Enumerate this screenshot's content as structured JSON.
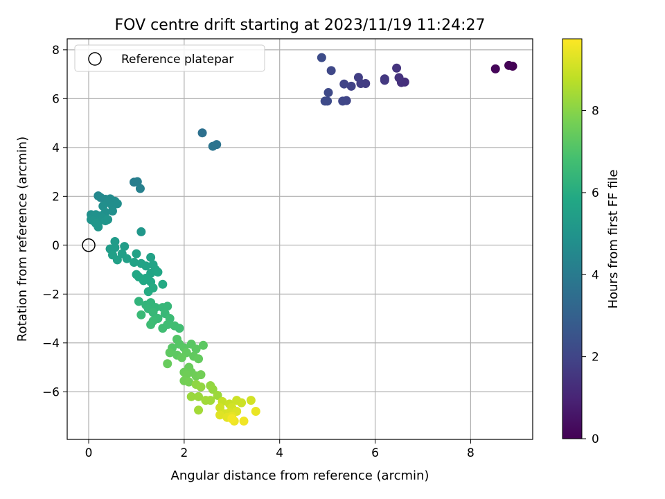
{
  "chart_data": {
    "type": "scatter",
    "title": "FOV centre drift starting at 2023/11/19 11:24:27",
    "xlabel": "Angular distance from reference (arcmin)",
    "ylabel": "Rotation from reference (arcmin)",
    "xlim": [
      -0.45,
      9.3
    ],
    "ylim": [
      -7.95,
      8.45
    ],
    "xticks": [
      0,
      2,
      4,
      6,
      8
    ],
    "yticks": [
      -6,
      -4,
      -2,
      0,
      2,
      4,
      6,
      8
    ],
    "grid": true,
    "legend": {
      "position": "top-left",
      "entries": [
        "Reference platepar"
      ]
    },
    "reference_point": {
      "x": 0,
      "y": 0
    },
    "colorbar": {
      "label": "Hours from first FF file",
      "colormap": "viridis",
      "range": [
        0,
        9.75
      ],
      "ticks": [
        0,
        2,
        4,
        6,
        8
      ]
    },
    "points": [
      {
        "x": 8.88,
        "y": 7.33,
        "c": 0.0
      },
      {
        "x": 8.8,
        "y": 7.36,
        "c": 0.05
      },
      {
        "x": 8.52,
        "y": 7.22,
        "c": 0.15
      },
      {
        "x": 6.62,
        "y": 6.68,
        "c": 1.3
      },
      {
        "x": 6.55,
        "y": 6.66,
        "c": 1.35
      },
      {
        "x": 6.5,
        "y": 6.86,
        "c": 1.4
      },
      {
        "x": 6.45,
        "y": 7.25,
        "c": 1.45
      },
      {
        "x": 6.2,
        "y": 6.81,
        "c": 1.55
      },
      {
        "x": 6.2,
        "y": 6.75,
        "c": 1.6
      },
      {
        "x": 5.8,
        "y": 6.62,
        "c": 1.7
      },
      {
        "x": 5.7,
        "y": 6.62,
        "c": 1.75
      },
      {
        "x": 5.65,
        "y": 6.87,
        "c": 1.8
      },
      {
        "x": 5.5,
        "y": 6.51,
        "c": 1.9
      },
      {
        "x": 5.35,
        "y": 6.6,
        "c": 1.95
      },
      {
        "x": 5.4,
        "y": 5.92,
        "c": 2.0
      },
      {
        "x": 5.32,
        "y": 5.9,
        "c": 2.05
      },
      {
        "x": 5.08,
        "y": 7.15,
        "c": 2.1
      },
      {
        "x": 5.02,
        "y": 6.25,
        "c": 2.15
      },
      {
        "x": 4.95,
        "y": 5.9,
        "c": 2.2
      },
      {
        "x": 5.0,
        "y": 5.9,
        "c": 2.22
      },
      {
        "x": 4.88,
        "y": 7.68,
        "c": 2.25
      },
      {
        "x": 2.38,
        "y": 4.6,
        "c": 3.6
      },
      {
        "x": 2.68,
        "y": 4.12,
        "c": 3.7
      },
      {
        "x": 2.6,
        "y": 4.05,
        "c": 3.75
      },
      {
        "x": 0.95,
        "y": 2.58,
        "c": 4.1
      },
      {
        "x": 1.02,
        "y": 2.6,
        "c": 4.15
      },
      {
        "x": 1.08,
        "y": 2.32,
        "c": 4.2
      },
      {
        "x": 0.2,
        "y": 2.02,
        "c": 4.5
      },
      {
        "x": 0.25,
        "y": 1.95,
        "c": 4.55
      },
      {
        "x": 0.35,
        "y": 1.88,
        "c": 4.6
      },
      {
        "x": 0.45,
        "y": 1.9,
        "c": 4.65
      },
      {
        "x": 0.55,
        "y": 1.8,
        "c": 4.7
      },
      {
        "x": 0.4,
        "y": 1.75,
        "c": 4.7
      },
      {
        "x": 0.6,
        "y": 1.7,
        "c": 4.75
      },
      {
        "x": 0.5,
        "y": 1.6,
        "c": 4.75
      },
      {
        "x": 0.3,
        "y": 1.6,
        "c": 4.8
      },
      {
        "x": 0.5,
        "y": 1.4,
        "c": 4.8
      },
      {
        "x": 0.35,
        "y": 1.35,
        "c": 4.85
      },
      {
        "x": 0.05,
        "y": 1.25,
        "c": 4.85
      },
      {
        "x": 0.15,
        "y": 1.25,
        "c": 4.9
      },
      {
        "x": 0.25,
        "y": 1.2,
        "c": 4.9
      },
      {
        "x": 0.3,
        "y": 1.1,
        "c": 4.95
      },
      {
        "x": 0.05,
        "y": 1.05,
        "c": 4.95
      },
      {
        "x": 0.1,
        "y": 1.0,
        "c": 5.0
      },
      {
        "x": 0.2,
        "y": 0.95,
        "c": 5.0
      },
      {
        "x": 0.35,
        "y": 1.0,
        "c": 5.05
      },
      {
        "x": 0.4,
        "y": 1.05,
        "c": 5.05
      },
      {
        "x": 0.2,
        "y": 0.75,
        "c": 5.1
      },
      {
        "x": 0.15,
        "y": 0.9,
        "c": 5.1
      },
      {
        "x": 1.1,
        "y": 0.55,
        "c": 5.15
      },
      {
        "x": 0.55,
        "y": 0.15,
        "c": 5.3
      },
      {
        "x": 0.45,
        "y": -0.15,
        "c": 5.35
      },
      {
        "x": 0.55,
        "y": -0.1,
        "c": 5.35
      },
      {
        "x": 0.75,
        "y": -0.05,
        "c": 5.4
      },
      {
        "x": 0.5,
        "y": -0.4,
        "c": 5.45
      },
      {
        "x": 0.7,
        "y": -0.35,
        "c": 5.45
      },
      {
        "x": 0.6,
        "y": -0.6,
        "c": 5.5
      },
      {
        "x": 0.8,
        "y": -0.55,
        "c": 5.5
      },
      {
        "x": 1.0,
        "y": -0.35,
        "c": 5.55
      },
      {
        "x": 1.3,
        "y": -0.5,
        "c": 5.55
      },
      {
        "x": 0.95,
        "y": -0.7,
        "c": 5.6
      },
      {
        "x": 1.1,
        "y": -0.75,
        "c": 5.6
      },
      {
        "x": 1.2,
        "y": -0.85,
        "c": 5.65
      },
      {
        "x": 1.35,
        "y": -0.8,
        "c": 5.65
      },
      {
        "x": 1.4,
        "y": -1.0,
        "c": 5.7
      },
      {
        "x": 1.3,
        "y": -1.15,
        "c": 5.7
      },
      {
        "x": 1.45,
        "y": -1.1,
        "c": 5.75
      },
      {
        "x": 1.0,
        "y": -1.2,
        "c": 5.75
      },
      {
        "x": 1.05,
        "y": -1.3,
        "c": 5.8
      },
      {
        "x": 1.2,
        "y": -1.35,
        "c": 5.8
      },
      {
        "x": 1.15,
        "y": -1.45,
        "c": 5.85
      },
      {
        "x": 1.3,
        "y": -1.5,
        "c": 5.85
      },
      {
        "x": 1.55,
        "y": -1.6,
        "c": 5.9
      },
      {
        "x": 1.35,
        "y": -1.75,
        "c": 5.95
      },
      {
        "x": 1.25,
        "y": -1.9,
        "c": 5.95
      },
      {
        "x": 1.05,
        "y": -2.3,
        "c": 6.3
      },
      {
        "x": 1.2,
        "y": -2.45,
        "c": 6.35
      },
      {
        "x": 1.3,
        "y": -2.35,
        "c": 6.35
      },
      {
        "x": 1.25,
        "y": -2.6,
        "c": 6.4
      },
      {
        "x": 1.4,
        "y": -2.55,
        "c": 6.4
      },
      {
        "x": 1.55,
        "y": -2.55,
        "c": 6.45
      },
      {
        "x": 1.65,
        "y": -2.5,
        "c": 6.45
      },
      {
        "x": 1.35,
        "y": -2.75,
        "c": 6.5
      },
      {
        "x": 1.6,
        "y": -2.8,
        "c": 6.5
      },
      {
        "x": 1.1,
        "y": -2.85,
        "c": 6.55
      },
      {
        "x": 1.45,
        "y": -3.0,
        "c": 6.55
      },
      {
        "x": 1.35,
        "y": -3.1,
        "c": 6.6
      },
      {
        "x": 1.7,
        "y": -3.0,
        "c": 6.6
      },
      {
        "x": 1.3,
        "y": -3.25,
        "c": 6.65
      },
      {
        "x": 1.55,
        "y": -3.4,
        "c": 6.7
      },
      {
        "x": 1.65,
        "y": -3.25,
        "c": 6.7
      },
      {
        "x": 1.8,
        "y": -3.3,
        "c": 6.75
      },
      {
        "x": 1.9,
        "y": -3.4,
        "c": 6.75
      },
      {
        "x": 1.85,
        "y": -3.85,
        "c": 7.1
      },
      {
        "x": 1.75,
        "y": -4.2,
        "c": 7.15
      },
      {
        "x": 1.9,
        "y": -4.05,
        "c": 7.15
      },
      {
        "x": 2.0,
        "y": -4.2,
        "c": 7.2
      },
      {
        "x": 2.15,
        "y": -4.05,
        "c": 7.2
      },
      {
        "x": 2.25,
        "y": -4.25,
        "c": 7.25
      },
      {
        "x": 2.4,
        "y": -4.1,
        "c": 7.25
      },
      {
        "x": 1.7,
        "y": -4.4,
        "c": 7.3
      },
      {
        "x": 1.85,
        "y": -4.5,
        "c": 7.3
      },
      {
        "x": 2.05,
        "y": -4.4,
        "c": 7.35
      },
      {
        "x": 2.2,
        "y": -4.55,
        "c": 7.35
      },
      {
        "x": 1.95,
        "y": -4.6,
        "c": 7.4
      },
      {
        "x": 2.3,
        "y": -4.65,
        "c": 7.4
      },
      {
        "x": 1.65,
        "y": -4.85,
        "c": 7.45
      },
      {
        "x": 2.1,
        "y": -5.0,
        "c": 7.5
      },
      {
        "x": 2.0,
        "y": -5.2,
        "c": 7.55
      },
      {
        "x": 2.15,
        "y": -5.2,
        "c": 7.55
      },
      {
        "x": 2.05,
        "y": -5.3,
        "c": 7.6
      },
      {
        "x": 2.25,
        "y": -5.35,
        "c": 7.6
      },
      {
        "x": 2.35,
        "y": -5.3,
        "c": 7.65
      },
      {
        "x": 2.0,
        "y": -5.55,
        "c": 7.65
      },
      {
        "x": 2.1,
        "y": -5.6,
        "c": 7.7
      },
      {
        "x": 2.25,
        "y": -5.7,
        "c": 8.1
      },
      {
        "x": 2.35,
        "y": -5.8,
        "c": 8.15
      },
      {
        "x": 2.55,
        "y": -5.75,
        "c": 8.15
      },
      {
        "x": 2.6,
        "y": -5.9,
        "c": 8.2
      },
      {
        "x": 2.15,
        "y": -6.2,
        "c": 8.25
      },
      {
        "x": 2.3,
        "y": -6.2,
        "c": 8.25
      },
      {
        "x": 2.7,
        "y": -6.15,
        "c": 8.3
      },
      {
        "x": 2.45,
        "y": -6.35,
        "c": 8.35
      },
      {
        "x": 2.55,
        "y": -6.35,
        "c": 8.35
      },
      {
        "x": 2.3,
        "y": -6.75,
        "c": 8.4
      },
      {
        "x": 2.8,
        "y": -6.4,
        "c": 8.9
      },
      {
        "x": 2.95,
        "y": -6.5,
        "c": 8.95
      },
      {
        "x": 3.1,
        "y": -6.35,
        "c": 9.0
      },
      {
        "x": 3.2,
        "y": -6.45,
        "c": 9.0
      },
      {
        "x": 2.75,
        "y": -6.65,
        "c": 9.05
      },
      {
        "x": 3.0,
        "y": -6.65,
        "c": 9.1
      },
      {
        "x": 3.4,
        "y": -6.35,
        "c": 9.1
      },
      {
        "x": 2.85,
        "y": -6.9,
        "c": 9.15
      },
      {
        "x": 2.95,
        "y": -6.85,
        "c": 9.2
      },
      {
        "x": 3.1,
        "y": -6.8,
        "c": 9.25
      },
      {
        "x": 2.75,
        "y": -6.95,
        "c": 9.3
      },
      {
        "x": 2.9,
        "y": -7.05,
        "c": 9.35
      },
      {
        "x": 3.0,
        "y": -7.0,
        "c": 9.4
      },
      {
        "x": 3.5,
        "y": -6.8,
        "c": 9.45
      },
      {
        "x": 3.05,
        "y": -7.2,
        "c": 9.5
      },
      {
        "x": 3.25,
        "y": -7.2,
        "c": 9.55
      },
      {
        "x": 3.0,
        "y": -7.1,
        "c": 9.6
      }
    ]
  }
}
